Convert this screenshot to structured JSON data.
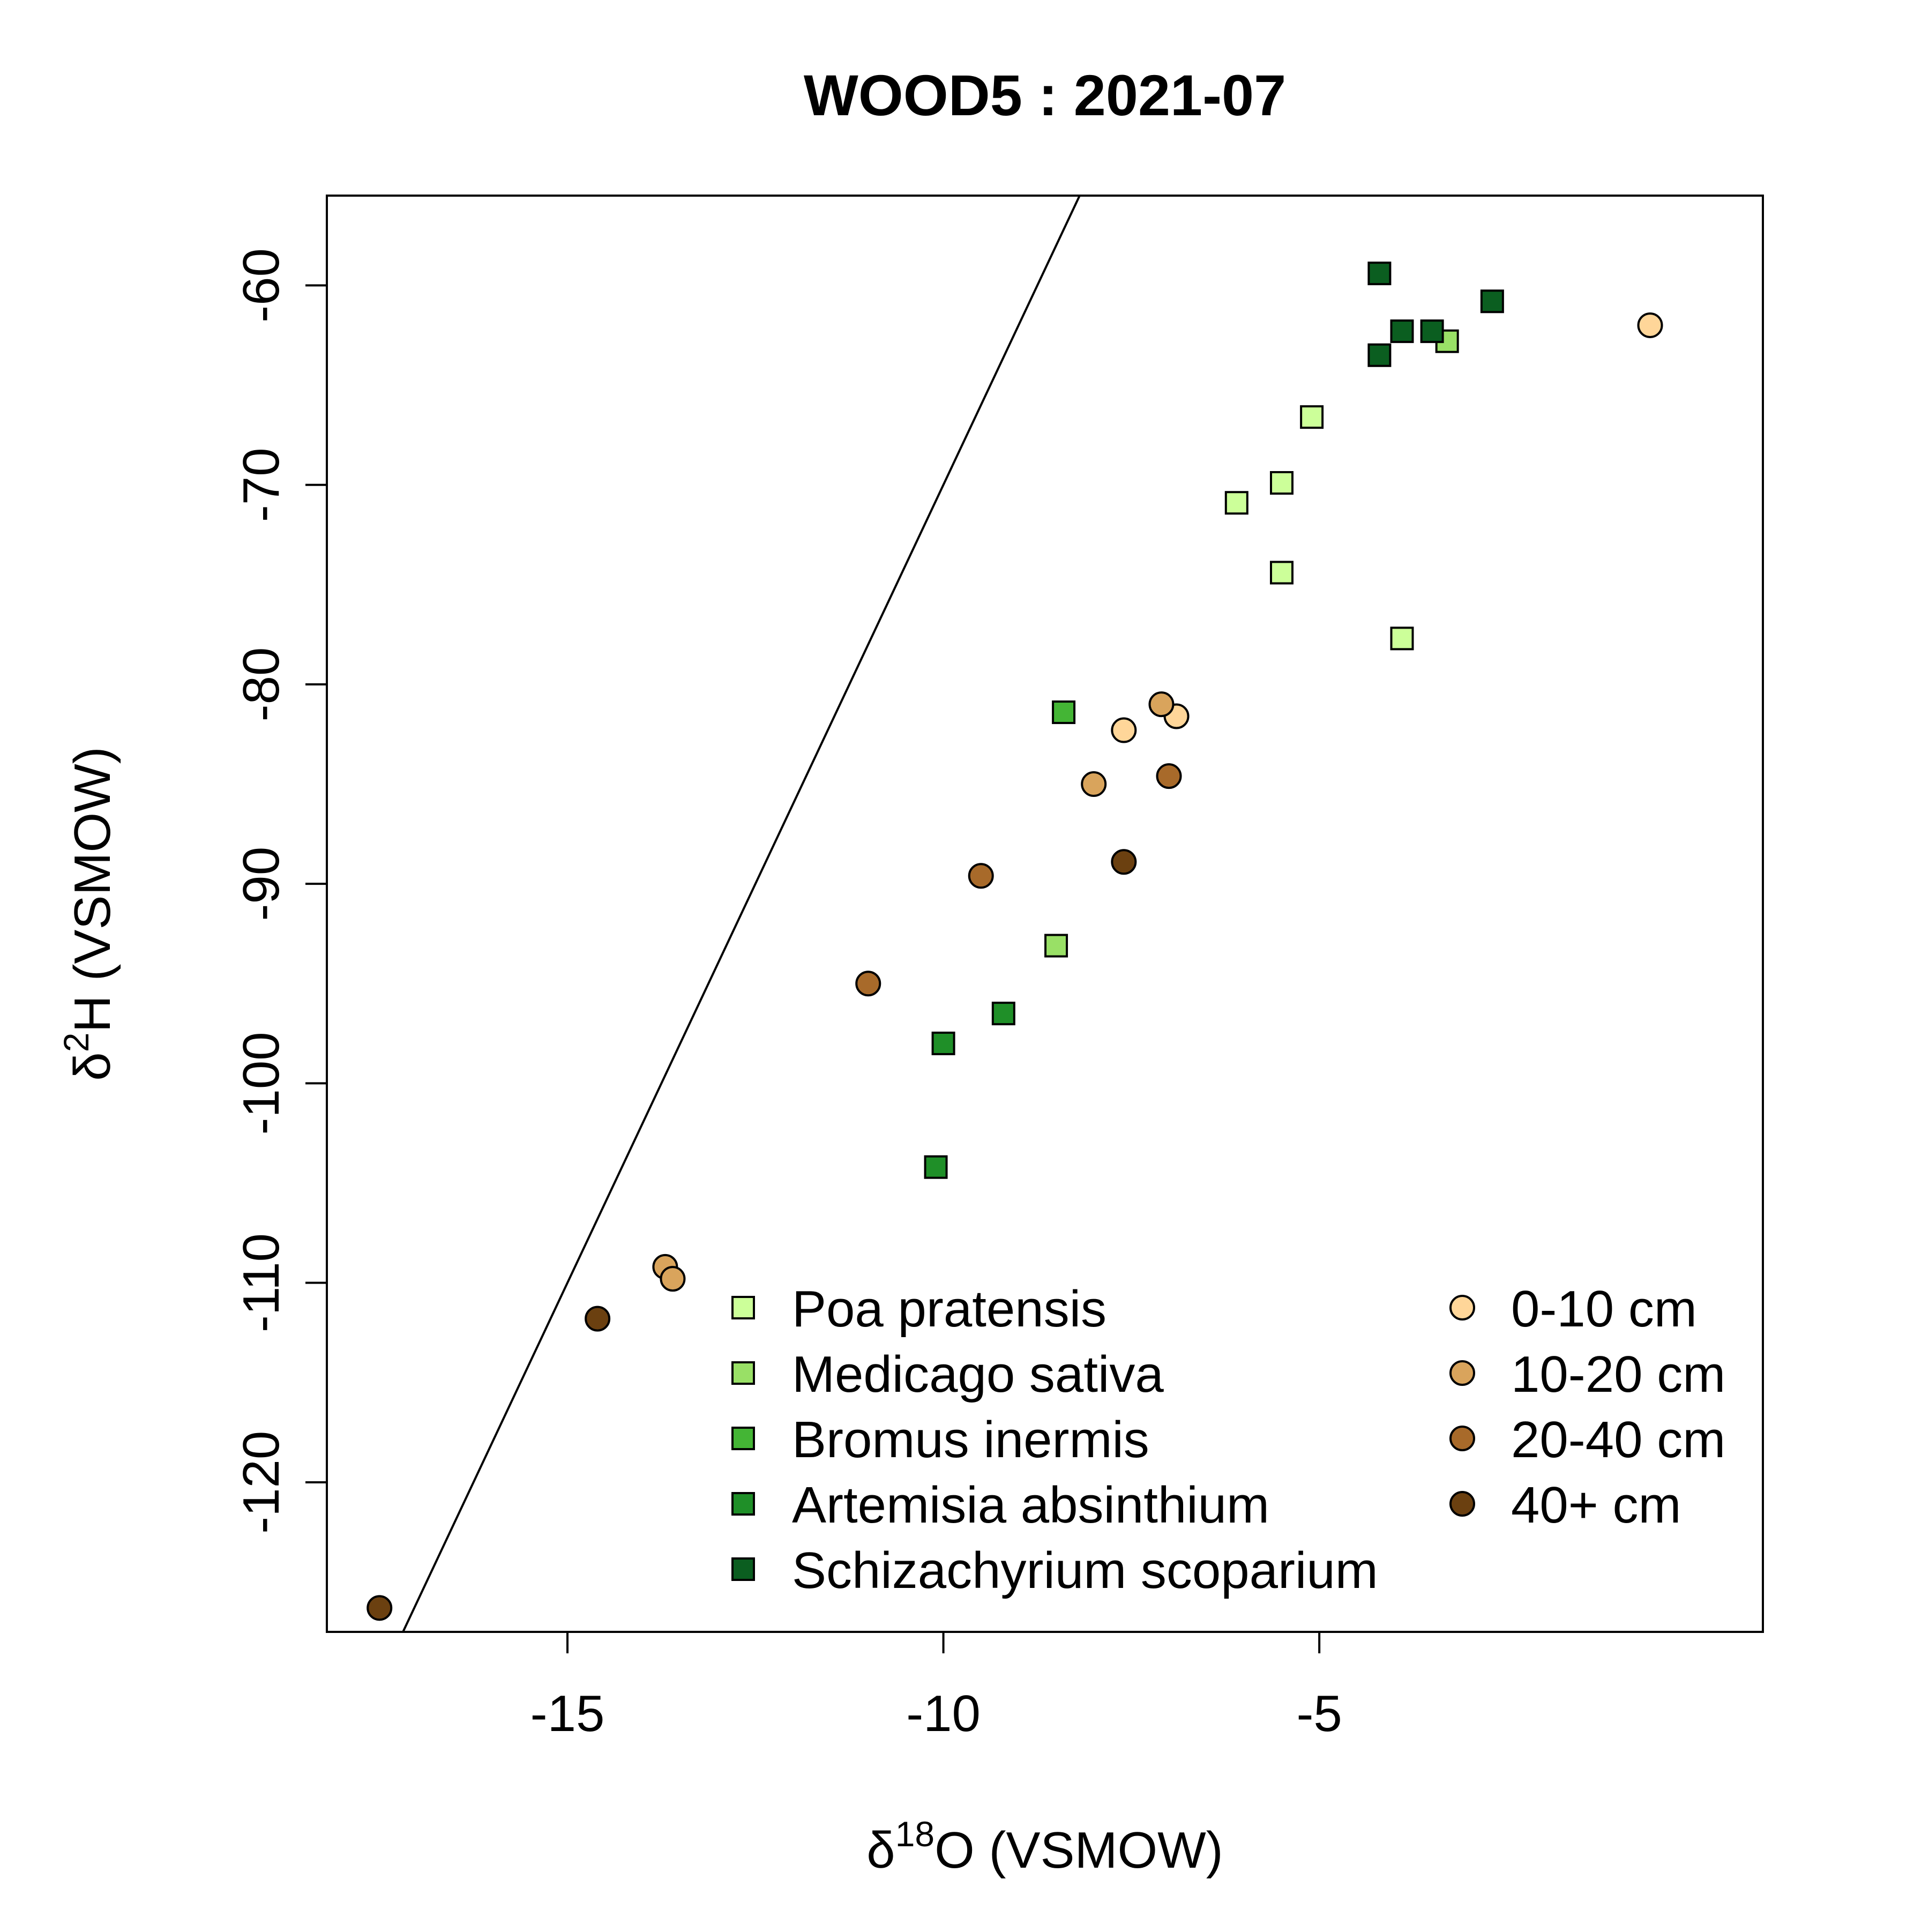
{
  "chart_data": {
    "type": "scatter",
    "title": "WOOD5 : 2021-07",
    "xlabel": {
      "prefix": "δ",
      "sup": "18",
      "main": "O (VSMOW)"
    },
    "ylabel": {
      "prefix": "δ",
      "sup": "2",
      "main": "H (VSMOW)"
    },
    "xlim": [
      -18.2,
      0.9
    ],
    "ylim": [
      -127.5,
      -55.5
    ],
    "x_ticks": [
      -15,
      -10,
      -5
    ],
    "x_tick_labels": [
      "-15",
      "-10",
      "-5"
    ],
    "y_ticks": [
      -60,
      -70,
      -80,
      -90,
      -100,
      -110,
      -120
    ],
    "y_tick_labels": [
      "-60",
      "-70",
      "-80",
      "-90",
      "-100",
      "-110",
      "-120"
    ],
    "grid": false,
    "legend_position": "bottom-right",
    "reference_line": {
      "slope": 8,
      "intercept": 10
    },
    "plant_series": [
      {
        "name": "Poa pratensis",
        "marker": "square",
        "color": "#ccff99",
        "points": [
          [
            -5.1,
            -66.6
          ],
          [
            -5.5,
            -69.9
          ],
          [
            -6.1,
            -70.9
          ],
          [
            -5.5,
            -74.4
          ],
          [
            -3.9,
            -77.7
          ]
        ]
      },
      {
        "name": "Medicago sativa",
        "marker": "square",
        "color": "#99e066",
        "points": [
          [
            -8.5,
            -93.1
          ],
          [
            -3.3,
            -62.8
          ]
        ]
      },
      {
        "name": "Bromus inermis",
        "marker": "square",
        "color": "#44b535",
        "points": [
          [
            -8.4,
            -81.4
          ]
        ]
      },
      {
        "name": "Artemisia absinthium",
        "marker": "square",
        "color": "#1f8f28",
        "points": [
          [
            -9.2,
            -96.5
          ],
          [
            -10.0,
            -98.0
          ],
          [
            -10.1,
            -104.2
          ]
        ]
      },
      {
        "name": "Schizachyrium scoparium",
        "marker": "square",
        "color": "#0b5e20",
        "points": [
          [
            -4.2,
            -59.4
          ],
          [
            -2.7,
            -60.8
          ],
          [
            -3.9,
            -62.3
          ],
          [
            -3.5,
            -62.3
          ],
          [
            -4.2,
            -63.5
          ]
        ]
      }
    ],
    "soil_series": [
      {
        "name": "0-10 cm",
        "marker": "circle",
        "color": "#ffd699",
        "points": [
          [
            -0.6,
            -62.0
          ],
          [
            -7.6,
            -82.3
          ],
          [
            -6.9,
            -81.6
          ]
        ]
      },
      {
        "name": "10-20 cm",
        "marker": "circle",
        "color": "#d9a45c",
        "points": [
          [
            -7.1,
            -81.0
          ],
          [
            -8.0,
            -85.0
          ],
          [
            -13.7,
            -109.2
          ],
          [
            -13.6,
            -109.8
          ]
        ]
      },
      {
        "name": "20-40 cm",
        "marker": "circle",
        "color": "#a86a2a",
        "points": [
          [
            -7.0,
            -84.6
          ],
          [
            -9.5,
            -89.6
          ],
          [
            -11.0,
            -95.0
          ]
        ]
      },
      {
        "name": "40+ cm",
        "marker": "circle",
        "color": "#6b4010",
        "points": [
          [
            -7.6,
            -88.9
          ],
          [
            -14.6,
            -111.8
          ],
          [
            -17.5,
            -126.3
          ]
        ]
      }
    ]
  }
}
